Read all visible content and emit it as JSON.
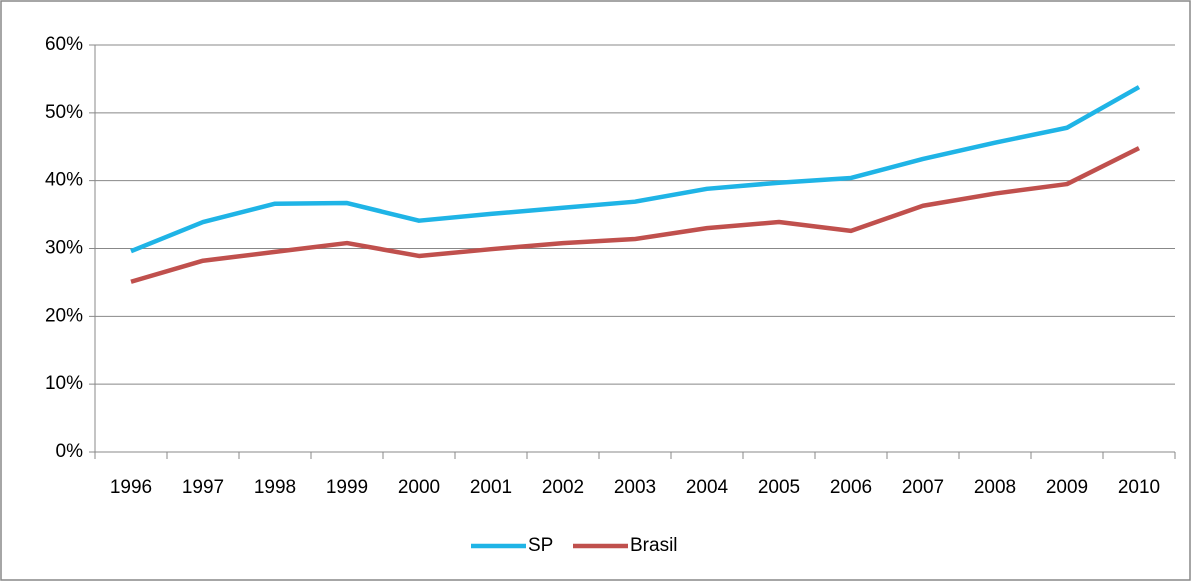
{
  "chart_data": {
    "type": "line",
    "categories": [
      "1996",
      "1997",
      "1998",
      "1999",
      "2000",
      "2001",
      "2002",
      "2003",
      "2004",
      "2005",
      "2006",
      "2007",
      "2008",
      "2009",
      "2010"
    ],
    "series": [
      {
        "name": "SP",
        "color": "#1fb4e6",
        "values": [
          29.6,
          33.9,
          36.6,
          36.7,
          34.1,
          35.1,
          36.0,
          36.9,
          38.8,
          39.7,
          40.4,
          43.2,
          45.6,
          47.8,
          53.8
        ]
      },
      {
        "name": "Brasil",
        "color": "#c0504d",
        "values": [
          25.1,
          28.2,
          29.5,
          30.8,
          28.9,
          29.9,
          30.8,
          31.4,
          33.0,
          33.9,
          32.6,
          36.3,
          38.1,
          39.5,
          44.8
        ]
      }
    ],
    "ylim": [
      0,
      60
    ],
    "yticks": [
      {
        "value": 0,
        "label": "0%"
      },
      {
        "value": 10,
        "label": "10%"
      },
      {
        "value": 20,
        "label": "20%"
      },
      {
        "value": 30,
        "label": "30%"
      },
      {
        "value": 40,
        "label": "40%"
      },
      {
        "value": 50,
        "label": "50%"
      },
      {
        "value": 60,
        "label": "60%"
      }
    ],
    "grid": true,
    "legend": "bottom"
  }
}
